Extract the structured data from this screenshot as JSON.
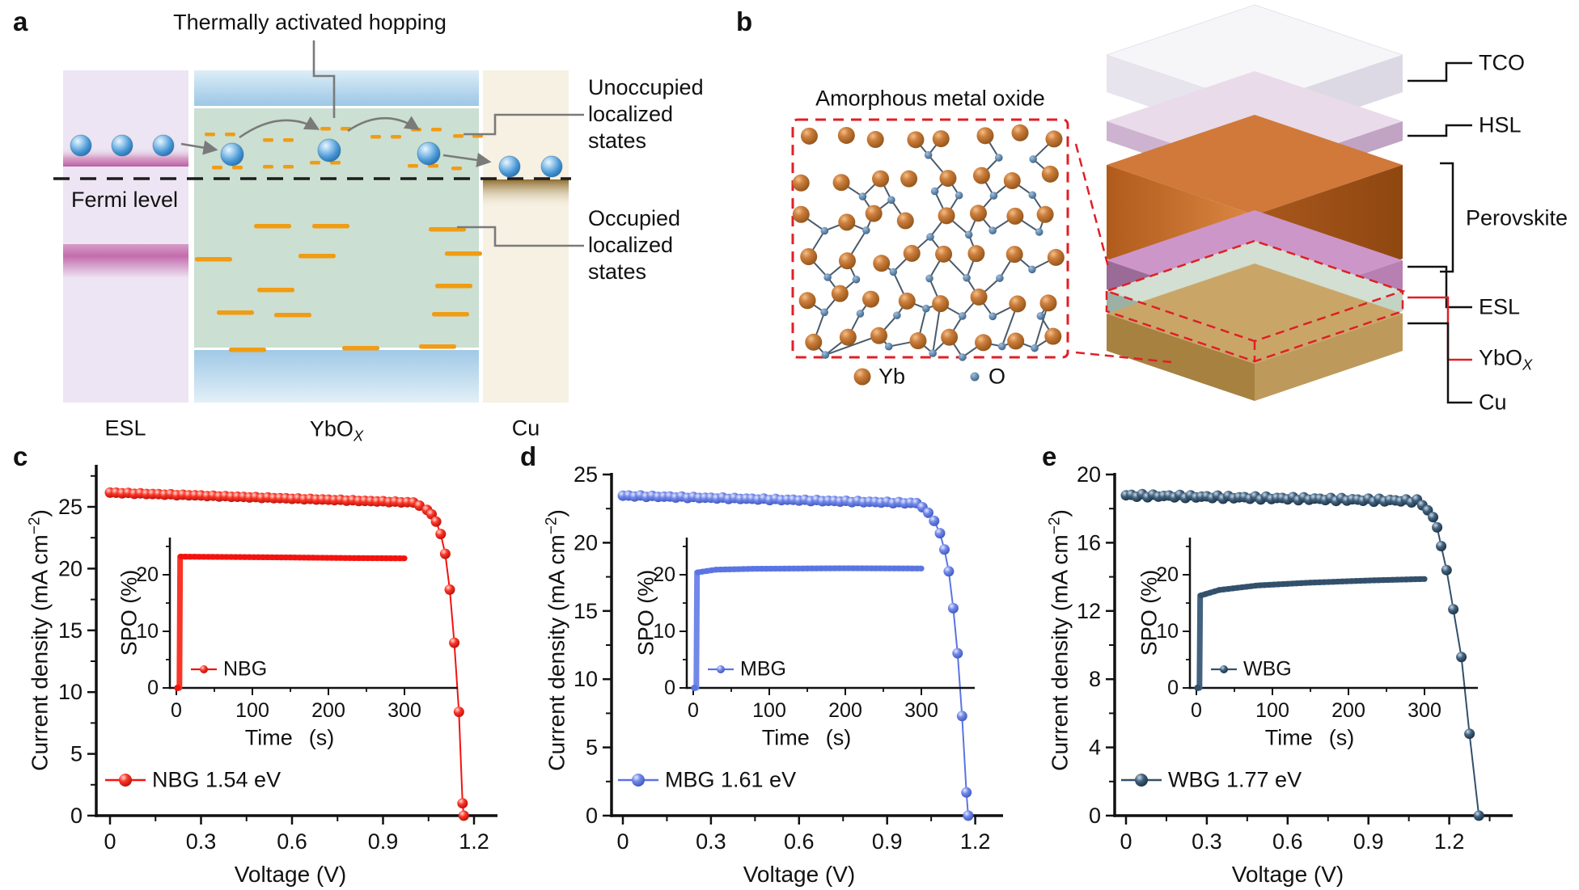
{
  "panel_labels": {
    "a": "a",
    "b": "b",
    "c": "c",
    "d": "d",
    "e": "e"
  },
  "panel_a": {
    "title": "Thermally activated hopping",
    "fermi_label": "Fermi level",
    "unoccupied_label": "Unoccupied localized states",
    "occupied_label": "Occupied localized states",
    "columns": {
      "esl": "ESL",
      "ybox_base": "YbO",
      "ybox_sub": "X",
      "cu": "Cu"
    },
    "colors": {
      "localized_state": "#f09c14",
      "electron": "#4796d4",
      "esl_band": "#c46cae",
      "green": "#cbdfd2",
      "blue_band": "#a5cce8",
      "cu_band": "#8d6d2e"
    }
  },
  "panel_b": {
    "title": "Amorphous metal oxide",
    "atom_legend": {
      "yb": "Yb",
      "o": "O"
    },
    "atom_colors": {
      "yb": "#cd7f3d",
      "o": "#5b82a8"
    },
    "highlight_color": "#e01f26",
    "stack": [
      {
        "label": "TCO"
      },
      {
        "label": "HSL"
      },
      {
        "label": "Perovskite"
      },
      {
        "label": "ESL"
      },
      {
        "label_base": "YbO",
        "label_sub": "X"
      },
      {
        "label": "Cu"
      }
    ]
  },
  "chart_data": [
    {
      "type": "line",
      "panel": "c",
      "legend": "NBG 1.54 eV",
      "x_title": "Voltage (V)",
      "y_title_pre": "Current density (mA cm",
      "y_title_sup": "−2",
      "y_title_post": ")",
      "x_ticks": {
        "values": [
          0,
          0.3,
          0.6,
          0.9,
          1.2
        ],
        "labels": [
          "0",
          "0.3",
          "0.6",
          "0.9",
          "1.2"
        ],
        "minor_step": 0.15
      },
      "y_ticks": {
        "values": [
          0,
          5,
          10,
          15,
          20,
          25
        ],
        "labels": [
          "0",
          "5",
          "10",
          "15",
          "20",
          "25"
        ],
        "minor_step": 2.5,
        "max": 28.4
      },
      "xlim": [
        0,
        1.28
      ],
      "curve": {
        "plateau": {
          "v0": 0,
          "v1": 1.0,
          "j0": 26.15,
          "j1": 25.35,
          "step": 0.02,
          "noise": 0.03
        },
        "drop": [
          [
            1.02,
            25.1
          ],
          [
            1.045,
            24.75
          ],
          [
            1.06,
            24.4
          ],
          [
            1.075,
            23.8
          ],
          [
            1.09,
            22.8
          ],
          [
            1.105,
            21.2
          ],
          [
            1.12,
            18.3
          ],
          [
            1.135,
            14.0
          ],
          [
            1.15,
            8.4
          ],
          [
            1.162,
            1.0
          ],
          [
            1.166,
            0
          ]
        ]
      },
      "color": {
        "line": "#f31210",
        "ball_light": "#ffdcd6",
        "ball_mid": "#fa3526",
        "ball_dark": "#b00a04"
      },
      "inset": {
        "y_title": "SPO (%)",
        "x_title": "Time",
        "x_title_unit": "(s)",
        "legend": "NBG",
        "x_ticks": {
          "values": [
            0,
            100,
            200,
            300
          ],
          "labels": [
            "0",
            "100",
            "200",
            "300"
          ],
          "minor_step": 50
        },
        "y_ticks": {
          "values": [
            0,
            10,
            20
          ],
          "labels": [
            "0",
            "10",
            "20"
          ],
          "minor_step": 5
        },
        "spo": [
          [
            0,
            0
          ],
          [
            4,
            0
          ],
          [
            5,
            23.2
          ],
          [
            60,
            23.15
          ],
          [
            150,
            23.05
          ],
          [
            230,
            22.95
          ],
          [
            300,
            22.9
          ]
        ]
      }
    },
    {
      "type": "line",
      "panel": "d",
      "legend": "MBG 1.61 eV",
      "x_title": "Voltage (V)",
      "y_title_pre": "Current density (mA cm",
      "y_title_sup": "−2",
      "y_title_post": ")",
      "x_ticks": {
        "values": [
          0,
          0.3,
          0.6,
          0.9,
          1.2
        ],
        "labels": [
          "0",
          "0.3",
          "0.6",
          "0.9",
          "1.2"
        ],
        "minor_step": 0.15
      },
      "y_ticks": {
        "values": [
          0,
          5,
          10,
          15,
          20,
          25
        ],
        "labels": [
          "0",
          "5",
          "10",
          "15",
          "20",
          "25"
        ],
        "minor_step": 2.5,
        "max": 25.1
      },
      "xlim": [
        0,
        1.29
      ],
      "curve": {
        "plateau": {
          "v0": 0,
          "v1": 1.0,
          "j0": 23.45,
          "j1": 22.9,
          "step": 0.02,
          "noise": 0.05
        },
        "drop": [
          [
            1.02,
            22.6
          ],
          [
            1.04,
            22.2
          ],
          [
            1.06,
            21.6
          ],
          [
            1.08,
            20.7
          ],
          [
            1.095,
            19.5
          ],
          [
            1.11,
            17.9
          ],
          [
            1.125,
            15.2
          ],
          [
            1.14,
            11.9
          ],
          [
            1.155,
            7.3
          ],
          [
            1.17,
            1.7
          ],
          [
            1.176,
            0
          ]
        ]
      },
      "color": {
        "line": "#5a74e2",
        "ball_light": "#e6ebfc",
        "ball_mid": "#7187ea",
        "ball_dark": "#3850b8"
      },
      "inset": {
        "y_title": "SPO (%)",
        "x_title": "Time",
        "x_title_unit": "(s)",
        "legend": "MBG",
        "x_ticks": {
          "values": [
            0,
            100,
            200,
            300
          ],
          "labels": [
            "0",
            "100",
            "200",
            "300"
          ],
          "minor_step": 50
        },
        "y_ticks": {
          "values": [
            0,
            10,
            20
          ],
          "labels": [
            "0",
            "10",
            "20"
          ],
          "minor_step": 5
        },
        "spo": [
          [
            0,
            0
          ],
          [
            4,
            0
          ],
          [
            5,
            20.4
          ],
          [
            30,
            20.9
          ],
          [
            80,
            21.05
          ],
          [
            200,
            21.15
          ],
          [
            300,
            21.1
          ]
        ]
      }
    },
    {
      "type": "line",
      "panel": "e",
      "legend": "WBG 1.77 eV",
      "x_title": "Voltage (V)",
      "y_title_pre": "Current density (mA cm",
      "y_title_sup": "−2",
      "y_title_post": ")",
      "x_ticks": {
        "values": [
          0,
          0.3,
          0.6,
          0.9,
          1.2
        ],
        "labels": [
          "0",
          "0.3",
          "0.6",
          "0.9",
          "1.2"
        ],
        "minor_step": 0.15
      },
      "y_ticks": {
        "values": [
          0,
          4,
          8,
          12,
          16,
          20
        ],
        "labels": [
          "0",
          "4",
          "8",
          "12",
          "16",
          "20"
        ],
        "minor_step": 2,
        "max": 20.1
      },
      "xlim": [
        0,
        1.43
      ],
      "curve": {
        "plateau": {
          "v0": 0,
          "v1": 1.08,
          "j0": 18.78,
          "j1": 18.45,
          "step": 0.02,
          "noise": 0.09
        },
        "drop": [
          [
            1.1,
            18.2
          ],
          [
            1.12,
            17.9
          ],
          [
            1.14,
            17.5
          ],
          [
            1.155,
            16.9
          ],
          [
            1.17,
            15.8
          ],
          [
            1.19,
            14.4
          ],
          [
            1.215,
            12.1
          ],
          [
            1.245,
            9.3
          ],
          [
            1.275,
            4.8
          ],
          [
            1.31,
            0
          ]
        ]
      },
      "color": {
        "line": "#32506b",
        "ball_light": "#ccdae6",
        "ball_mid": "#42627f",
        "ball_dark": "#152a3b"
      },
      "inset": {
        "y_title": "SPO (%)",
        "x_title": "Time",
        "x_title_unit": "(s)",
        "legend": "WBG",
        "x_ticks": {
          "values": [
            0,
            100,
            200,
            300
          ],
          "labels": [
            "0",
            "100",
            "200",
            "300"
          ],
          "minor_step": 50
        },
        "y_ticks": {
          "values": [
            0,
            10,
            20
          ],
          "labels": [
            "0",
            "10",
            "20"
          ],
          "minor_step": 5
        },
        "spo": [
          [
            0,
            0
          ],
          [
            4,
            0
          ],
          [
            5,
            16.3
          ],
          [
            30,
            17.3
          ],
          [
            80,
            18.1
          ],
          [
            150,
            18.6
          ],
          [
            230,
            19.0
          ],
          [
            300,
            19.25
          ]
        ]
      }
    }
  ]
}
